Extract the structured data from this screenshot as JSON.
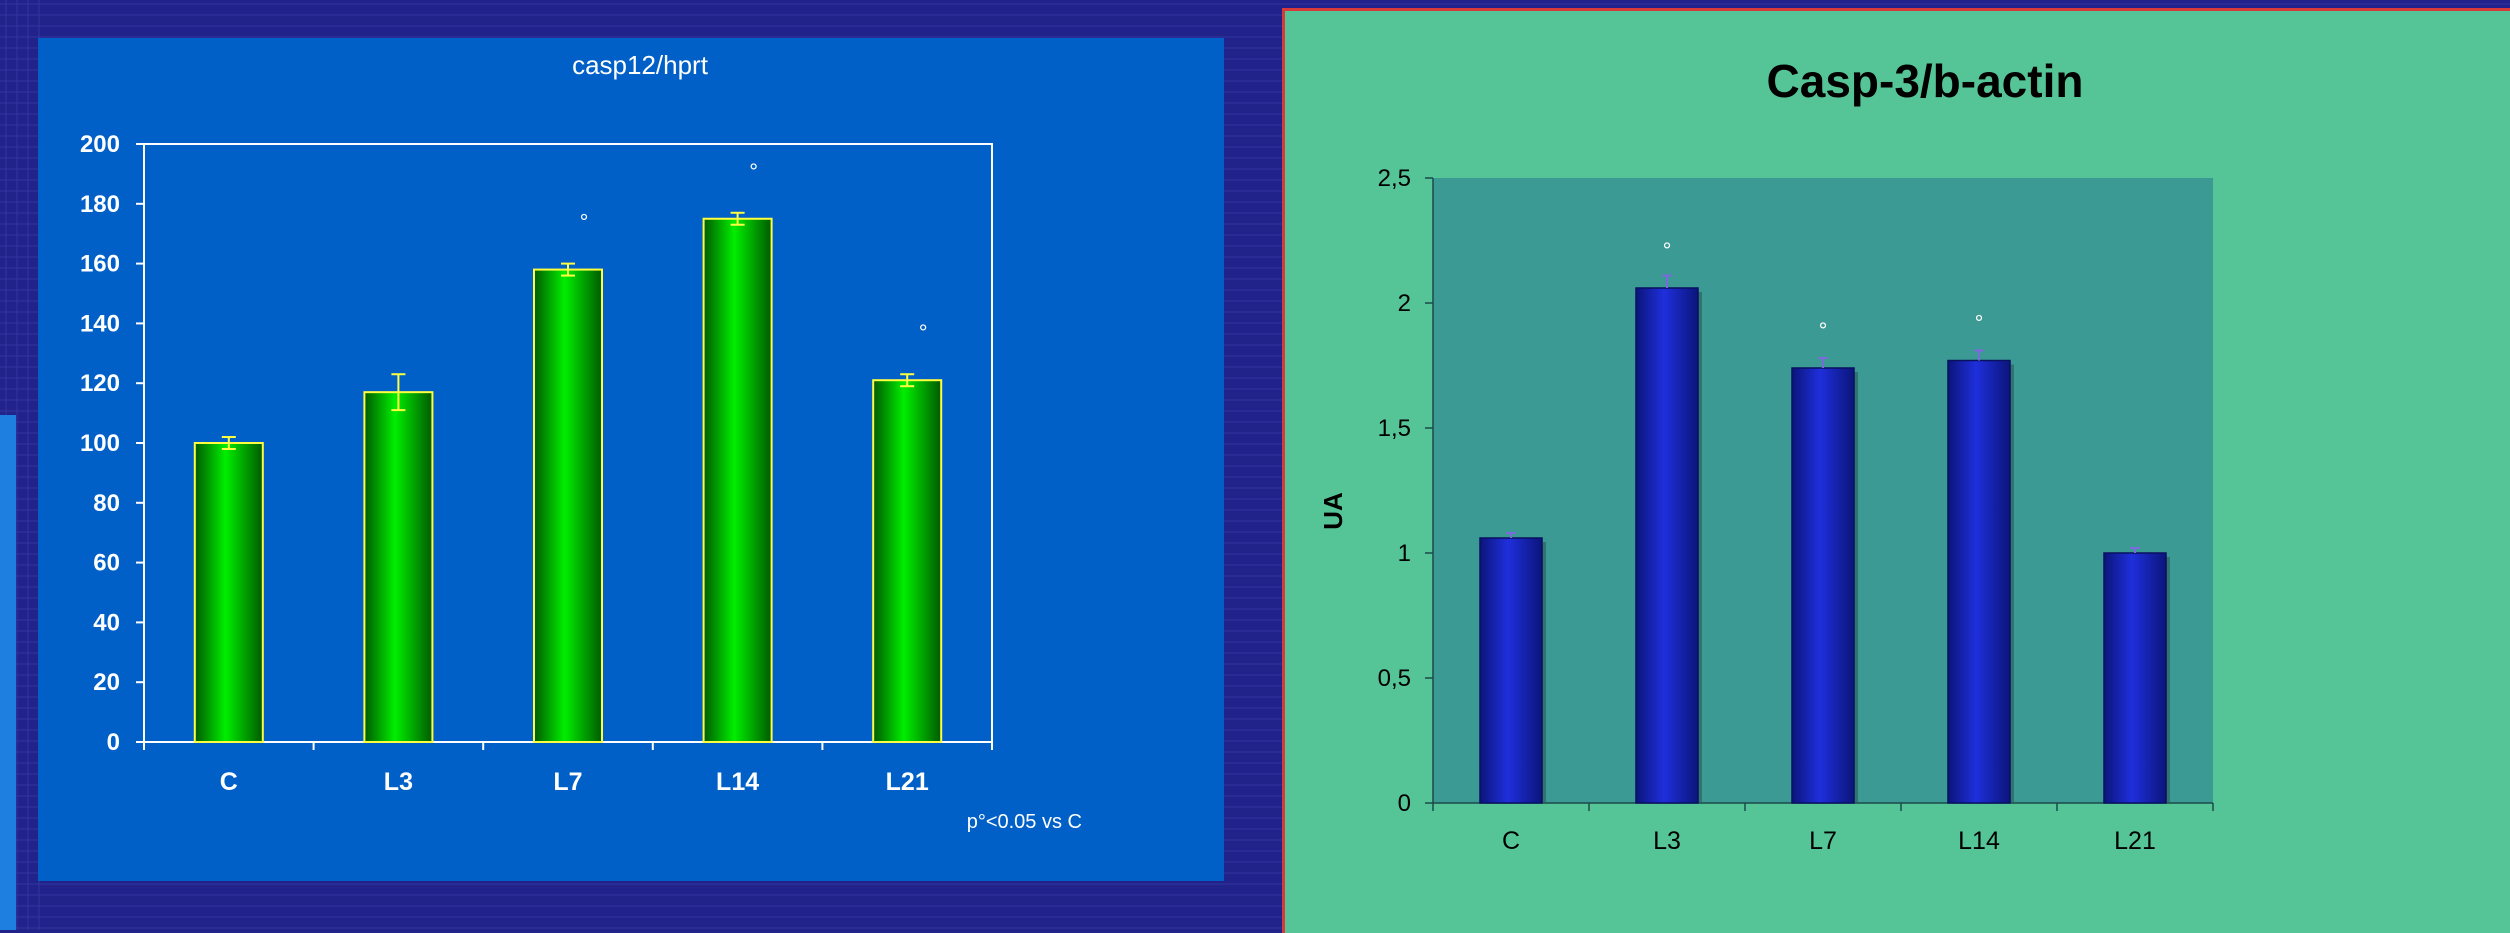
{
  "charts": {
    "left": {
      "background": "#0060c8",
      "bar_color": "#00ee00",
      "bar_dark": "#005a00",
      "bar_outline": "#ffff40",
      "error_color": "#ffff40",
      "note": "p°<0.05 vs C",
      "sig_marker": "°"
    },
    "right": {
      "background": "#55c597",
      "plot_area": "#3b9a94",
      "bar_color": "#1f2fdc",
      "bar_dark": "#0b157a",
      "sig_marker": "°"
    }
  },
  "chart_data": [
    {
      "type": "bar",
      "title": "casp12/hprt",
      "xlabel": "",
      "ylabel": "",
      "categories": [
        "C",
        "L3",
        "L7",
        "L14",
        "L21"
      ],
      "values": [
        100,
        117,
        158,
        175,
        121
      ],
      "errors": [
        2,
        6,
        2,
        2,
        2
      ],
      "significant": [
        false,
        false,
        true,
        true,
        true
      ],
      "ylim": [
        0,
        200
      ],
      "yticks": [
        0,
        20,
        40,
        60,
        80,
        100,
        120,
        140,
        160,
        180,
        200
      ],
      "ytick_labels": [
        "0",
        "20",
        "40",
        "60",
        "80",
        "100",
        "120",
        "140",
        "160",
        "180",
        "200"
      ],
      "grid": false,
      "legend": "none"
    },
    {
      "type": "bar",
      "title": "Casp-3/b-actin",
      "xlabel": "",
      "ylabel": "UA",
      "categories": [
        "C",
        "L3",
        "L7",
        "L14",
        "L21"
      ],
      "values": [
        1.06,
        2.06,
        1.74,
        1.77,
        1.0
      ],
      "errors": [
        0.02,
        0.05,
        0.04,
        0.04,
        0.02
      ],
      "significant": [
        false,
        true,
        true,
        true,
        false
      ],
      "ylim": [
        0,
        2.5
      ],
      "yticks": [
        0,
        0.5,
        1,
        1.5,
        2,
        2.5
      ],
      "ytick_labels": [
        "0",
        "0,5",
        "1",
        "1,5",
        "2",
        "2,5"
      ],
      "grid": false,
      "legend": "none"
    }
  ]
}
